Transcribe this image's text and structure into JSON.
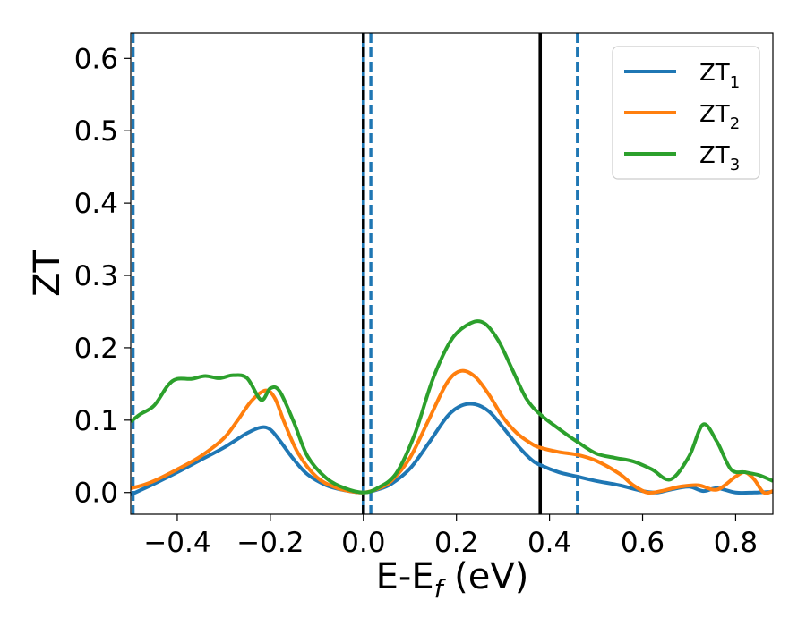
{
  "chart_data": {
    "type": "line",
    "title": "",
    "xlabel": "E-E",
    "xlabel_sub": "f",
    "xlabel_unit": " (eV)",
    "ylabel": "ZT",
    "xlim": [
      -0.5,
      0.88
    ],
    "ylim": [
      -0.03,
      0.635
    ],
    "grid": false,
    "legend_position": "top-right",
    "xticks": [
      {
        "value": -0.4,
        "label": "−0.4"
      },
      {
        "value": -0.2,
        "label": "−0.2"
      },
      {
        "value": 0.0,
        "label": "0.0"
      },
      {
        "value": 0.2,
        "label": "0.2"
      },
      {
        "value": 0.4,
        "label": "0.4"
      },
      {
        "value": 0.6,
        "label": "0.6"
      },
      {
        "value": 0.8,
        "label": "0.8"
      }
    ],
    "yticks": [
      {
        "value": 0.0,
        "label": "0.0"
      },
      {
        "value": 0.1,
        "label": "0.1"
      },
      {
        "value": 0.2,
        "label": "0.2"
      },
      {
        "value": 0.3,
        "label": "0.3"
      },
      {
        "value": 0.4,
        "label": "0.4"
      },
      {
        "value": 0.5,
        "label": "0.5"
      },
      {
        "value": 0.6,
        "label": "0.6"
      }
    ],
    "vlines": [
      {
        "x": -0.495,
        "style": "dashed",
        "color": "#1f77b4"
      },
      {
        "x": 0.0,
        "style": "solid",
        "color": "#1f77b4"
      },
      {
        "x": 0.0,
        "style": "dashed",
        "color": "#000000"
      },
      {
        "x": 0.016,
        "style": "dashed",
        "color": "#1f77b4"
      },
      {
        "x": 0.38,
        "style": "solid",
        "color": "#000000"
      },
      {
        "x": 0.46,
        "style": "dashed",
        "color": "#1f77b4"
      }
    ],
    "series": [
      {
        "name": "ZT",
        "name_sub": "1",
        "color": "#1f77b4",
        "x": [
          -0.5,
          -0.48,
          -0.45,
          -0.4,
          -0.35,
          -0.3,
          -0.25,
          -0.22,
          -0.2,
          -0.18,
          -0.15,
          -0.12,
          -0.08,
          -0.04,
          0.0,
          0.03,
          0.06,
          0.1,
          0.14,
          0.18,
          0.21,
          0.24,
          0.27,
          0.3,
          0.33,
          0.36,
          0.38,
          0.42,
          0.46,
          0.5,
          0.55,
          0.6,
          0.63,
          0.66,
          0.7,
          0.73,
          0.76,
          0.8,
          0.84,
          0.88
        ],
        "y": [
          -0.003,
          0.003,
          0.012,
          0.028,
          0.045,
          0.062,
          0.082,
          0.09,
          0.087,
          0.072,
          0.046,
          0.025,
          0.01,
          0.003,
          0.0,
          0.004,
          0.012,
          0.033,
          0.068,
          0.105,
          0.12,
          0.122,
          0.112,
          0.09,
          0.066,
          0.046,
          0.038,
          0.028,
          0.022,
          0.016,
          0.01,
          0.002,
          0.0,
          0.004,
          0.008,
          0.002,
          0.006,
          0.0,
          0.0,
          0.001
        ]
      },
      {
        "name": "ZT",
        "name_sub": "2",
        "color": "#ff7f0e",
        "x": [
          -0.5,
          -0.48,
          -0.45,
          -0.4,
          -0.35,
          -0.3,
          -0.27,
          -0.24,
          -0.21,
          -0.19,
          -0.17,
          -0.14,
          -0.1,
          -0.06,
          -0.03,
          0.0,
          0.03,
          0.06,
          0.1,
          0.14,
          0.18,
          0.21,
          0.24,
          0.27,
          0.3,
          0.33,
          0.36,
          0.38,
          0.42,
          0.46,
          0.5,
          0.55,
          0.58,
          0.61,
          0.64,
          0.68,
          0.72,
          0.76,
          0.8,
          0.82,
          0.84,
          0.86,
          0.88
        ],
        "y": [
          0.006,
          0.009,
          0.016,
          0.032,
          0.05,
          0.075,
          0.1,
          0.127,
          0.141,
          0.13,
          0.097,
          0.054,
          0.021,
          0.007,
          0.002,
          0.0,
          0.005,
          0.016,
          0.048,
          0.1,
          0.152,
          0.168,
          0.16,
          0.135,
          0.104,
          0.082,
          0.068,
          0.062,
          0.056,
          0.052,
          0.044,
          0.026,
          0.01,
          0.0,
          0.002,
          0.008,
          0.01,
          0.004,
          0.022,
          0.028,
          0.018,
          0.0,
          0.002
        ]
      },
      {
        "name": "ZT",
        "name_sub": "3",
        "color": "#2ca02c",
        "x": [
          -0.5,
          -0.48,
          -0.45,
          -0.42,
          -0.4,
          -0.37,
          -0.34,
          -0.31,
          -0.28,
          -0.25,
          -0.22,
          -0.2,
          -0.18,
          -0.15,
          -0.12,
          -0.08,
          -0.04,
          0.0,
          0.03,
          0.07,
          0.11,
          0.15,
          0.19,
          0.23,
          0.26,
          0.29,
          0.32,
          0.35,
          0.38,
          0.42,
          0.46,
          0.5,
          0.54,
          0.58,
          0.62,
          0.66,
          0.7,
          0.73,
          0.76,
          0.79,
          0.82,
          0.85,
          0.88
        ],
        "y": [
          0.098,
          0.108,
          0.12,
          0.148,
          0.157,
          0.157,
          0.161,
          0.158,
          0.162,
          0.158,
          0.128,
          0.144,
          0.14,
          0.098,
          0.05,
          0.02,
          0.006,
          0.0,
          0.006,
          0.026,
          0.08,
          0.158,
          0.212,
          0.234,
          0.234,
          0.21,
          0.17,
          0.13,
          0.108,
          0.088,
          0.07,
          0.054,
          0.048,
          0.043,
          0.032,
          0.018,
          0.05,
          0.094,
          0.07,
          0.032,
          0.028,
          0.024,
          0.016
        ]
      }
    ]
  }
}
